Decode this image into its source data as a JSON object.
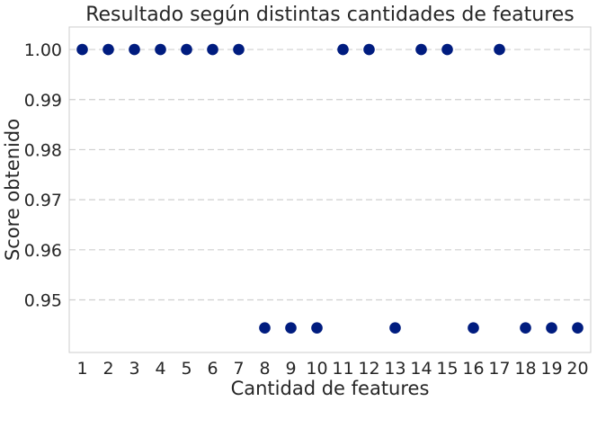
{
  "chart_data": {
    "type": "scatter",
    "title": "Resultado según distintas cantidades de features",
    "xlabel": "Cantidad de features",
    "ylabel": "Score obtenido",
    "x": [
      1,
      2,
      3,
      4,
      5,
      6,
      7,
      8,
      9,
      10,
      11,
      12,
      13,
      14,
      15,
      16,
      17,
      18,
      19,
      20
    ],
    "y": [
      1.0,
      1.0,
      1.0,
      1.0,
      1.0,
      1.0,
      1.0,
      0.9444,
      0.9444,
      0.9444,
      1.0,
      1.0,
      0.9444,
      1.0,
      1.0,
      0.9444,
      1.0,
      0.9444,
      0.9444,
      0.9444
    ],
    "x_ticks": [
      "1",
      "2",
      "3",
      "4",
      "5",
      "6",
      "7",
      "8",
      "9",
      "10",
      "11",
      "12",
      "13",
      "14",
      "15",
      "16",
      "17",
      "18",
      "19",
      "20"
    ],
    "y_ticks": [
      0.95,
      0.96,
      0.97,
      0.98,
      0.99,
      1.0
    ],
    "y_tick_labels": [
      "0.95",
      "0.96",
      "0.97",
      "0.98",
      "0.99",
      "1.00"
    ],
    "xlim": [
      0.5,
      20.5
    ],
    "ylim": [
      0.9395,
      1.0045
    ],
    "grid": "horizontal dashed",
    "marker_color": "#001c7f",
    "grid_color": "#cfcfcf",
    "frame_color": "#cccccc",
    "text_color": "#262626"
  }
}
